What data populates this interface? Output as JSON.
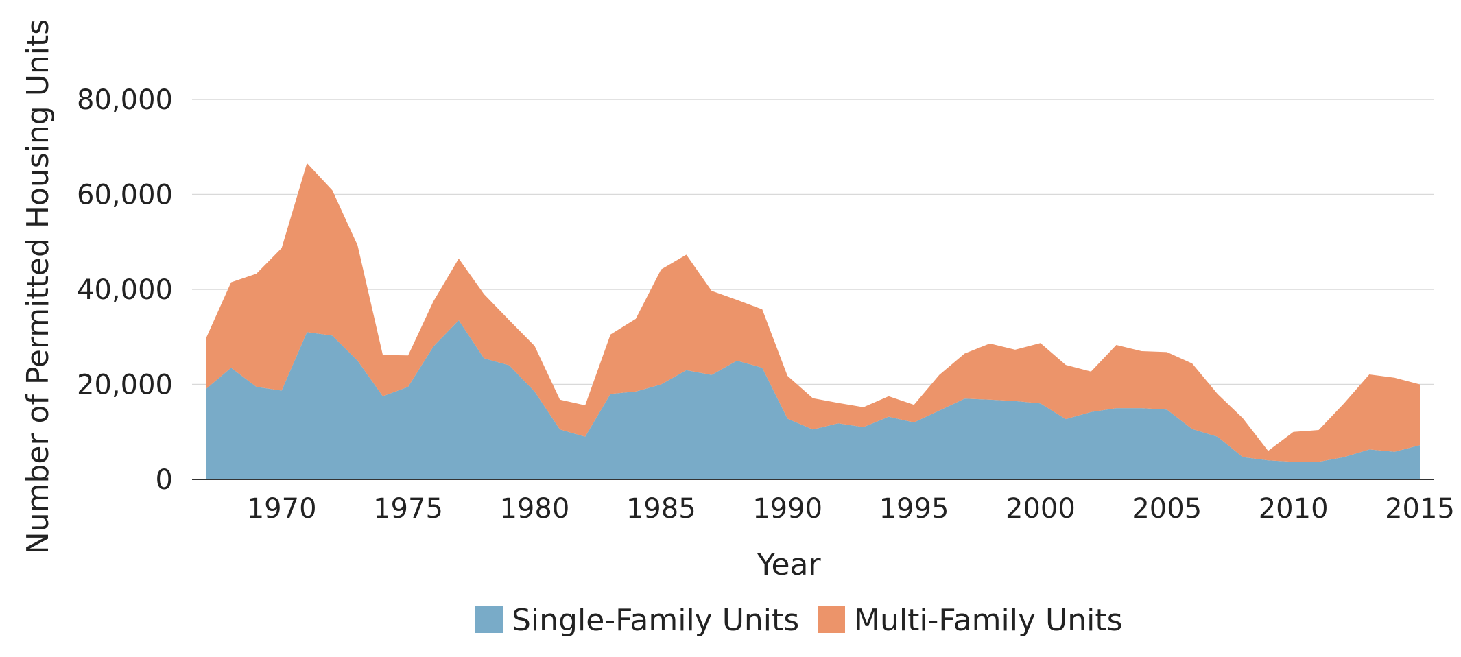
{
  "chart_data": {
    "type": "area",
    "stacked": true,
    "title": "",
    "xlabel": "Year",
    "ylabel": "Number of Permitted Housing Units",
    "xlim": [
      1967,
      2015
    ],
    "ylim": [
      0,
      80000
    ],
    "x_ticks": [
      1970,
      1975,
      1980,
      1985,
      1990,
      1995,
      2000,
      2005,
      2010,
      2015
    ],
    "y_ticks": [
      {
        "value": 0,
        "label": "0"
      },
      {
        "value": 20000,
        "label": "20,000"
      },
      {
        "value": 40000,
        "label": "40,000"
      },
      {
        "value": 60000,
        "label": "60,000"
      },
      {
        "value": 80000,
        "label": "80,000"
      }
    ],
    "grid": true,
    "legend_position": "bottom",
    "x": [
      1967,
      1968,
      1969,
      1970,
      1971,
      1972,
      1973,
      1974,
      1975,
      1976,
      1977,
      1978,
      1979,
      1980,
      1981,
      1982,
      1983,
      1984,
      1985,
      1986,
      1987,
      1988,
      1989,
      1990,
      1991,
      1992,
      1993,
      1994,
      1995,
      1996,
      1997,
      1998,
      1999,
      2000,
      2001,
      2002,
      2003,
      2004,
      2005,
      2006,
      2007,
      2008,
      2009,
      2010,
      2011,
      2012,
      2013,
      2014,
      2015
    ],
    "series": [
      {
        "name": "Single-Family Units",
        "color": "#79abc8",
        "values": [
          19000,
          23500,
          19500,
          18700,
          31000,
          30300,
          25000,
          17500,
          19500,
          28000,
          33500,
          25500,
          24000,
          18500,
          10500,
          9000,
          18000,
          18500,
          20000,
          23000,
          22000,
          25000,
          23500,
          12800,
          10500,
          11800,
          11000,
          13200,
          12000,
          14500,
          17000,
          16800,
          16500,
          16000,
          12700,
          14200,
          15000,
          15000,
          14700,
          10600,
          9000,
          4700,
          4000,
          3700,
          3700,
          4700,
          6300,
          5800,
          7200
        ]
      },
      {
        "name": "Multi-Family Units",
        "color": "#ec946a",
        "values": [
          10600,
          18000,
          23800,
          30000,
          35600,
          30600,
          24300,
          8700,
          6600,
          9500,
          13000,
          13500,
          9500,
          9600,
          6300,
          6600,
          12500,
          15300,
          24200,
          24300,
          17700,
          12800,
          12300,
          9000,
          6600,
          4300,
          4200,
          4300,
          3700,
          7500,
          9500,
          11800,
          10800,
          12700,
          11400,
          8500,
          13300,
          12000,
          12100,
          13800,
          9000,
          8200,
          2000,
          6300,
          6700,
          11300,
          15800,
          15600,
          12800
        ]
      }
    ]
  }
}
